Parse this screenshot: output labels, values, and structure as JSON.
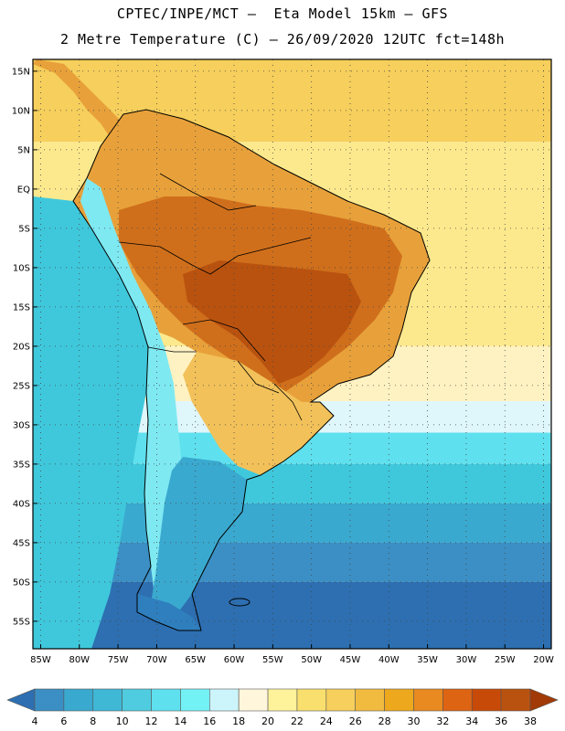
{
  "title_line1": "CPTEC/INPE/MCT –  Eta Model 15km – GFS",
  "title_line2": "2 Metre Temperature (C) – 26/09/2020 12UTC fct=148h",
  "map": {
    "lon_range": [
      -86,
      -19
    ],
    "lat_range": [
      -58.5,
      16.5
    ],
    "lat_ticks": [
      {
        "value": 15,
        "label": "15N"
      },
      {
        "value": 10,
        "label": "10N"
      },
      {
        "value": 5,
        "label": "5N"
      },
      {
        "value": 0,
        "label": "EQ"
      },
      {
        "value": -5,
        "label": "5S"
      },
      {
        "value": -10,
        "label": "10S"
      },
      {
        "value": -15,
        "label": "15S"
      },
      {
        "value": -20,
        "label": "20S"
      },
      {
        "value": -25,
        "label": "25S"
      },
      {
        "value": -30,
        "label": "30S"
      },
      {
        "value": -35,
        "label": "35S"
      },
      {
        "value": -40,
        "label": "40S"
      },
      {
        "value": -45,
        "label": "45S"
      },
      {
        "value": -50,
        "label": "50S"
      },
      {
        "value": -55,
        "label": "55S"
      }
    ],
    "lon_ticks": [
      {
        "value": -85,
        "label": "85W"
      },
      {
        "value": -80,
        "label": "80W"
      },
      {
        "value": -75,
        "label": "75W"
      },
      {
        "value": -70,
        "label": "70W"
      },
      {
        "value": -65,
        "label": "65W"
      },
      {
        "value": -60,
        "label": "60W"
      },
      {
        "value": -55,
        "label": "55W"
      },
      {
        "value": -50,
        "label": "50W"
      },
      {
        "value": -45,
        "label": "45W"
      },
      {
        "value": -40,
        "label": "40W"
      },
      {
        "value": -35,
        "label": "35W"
      },
      {
        "value": -30,
        "label": "30W"
      },
      {
        "value": -25,
        "label": "25W"
      },
      {
        "value": -20,
        "label": "20W"
      }
    ],
    "ocean_bands": [
      {
        "lat_top": 16.5,
        "lat_bottom": 6,
        "color": "#f6cf5c"
      },
      {
        "lat_top": 6,
        "lat_bottom": -20,
        "color": "#fde98d"
      },
      {
        "lat_top": -20,
        "lat_bottom": -27,
        "color": "#fff2c2"
      },
      {
        "lat_top": -27,
        "lat_bottom": -31,
        "color": "#dff6fb"
      },
      {
        "lat_top": -31,
        "lat_bottom": -35,
        "color": "#5fe0ee"
      },
      {
        "lat_top": -35,
        "lat_bottom": -40,
        "color": "#3fc8dc"
      },
      {
        "lat_top": -40,
        "lat_bottom": -45,
        "color": "#3aa9cf"
      },
      {
        "lat_top": -45,
        "lat_bottom": -50,
        "color": "#3b8fc4"
      },
      {
        "lat_top": -50,
        "lat_bottom": -58.5,
        "color": "#2d6fb1"
      }
    ],
    "pacific_color": "#3fc8dc",
    "land_colors": {
      "north": "#e8a13a",
      "amazon": "#cf6f1c",
      "hot_core": "#b9520f",
      "south_warm": "#f2c15a",
      "andes": "#7fe9f2",
      "patagonia": "#3aa9cf",
      "tip": "#2f7fbe"
    }
  },
  "colorbar": {
    "labels": [
      "4",
      "6",
      "8",
      "10",
      "12",
      "14",
      "16",
      "18",
      "20",
      "22",
      "24",
      "26",
      "28",
      "30",
      "32",
      "34",
      "36",
      "38"
    ],
    "colors": [
      "#2d6fb1",
      "#3b8fc4",
      "#3aa9cf",
      "#3fb8d6",
      "#4fcce0",
      "#5fe0ee",
      "#73f2f6",
      "#ccf4fb",
      "#fff6dc",
      "#fef29a",
      "#f9e06e",
      "#f6cf5c",
      "#f0bb3e",
      "#eda81e",
      "#e88a20",
      "#dd6412",
      "#c84a08",
      "#b9520f",
      "#a13a06"
    ]
  }
}
